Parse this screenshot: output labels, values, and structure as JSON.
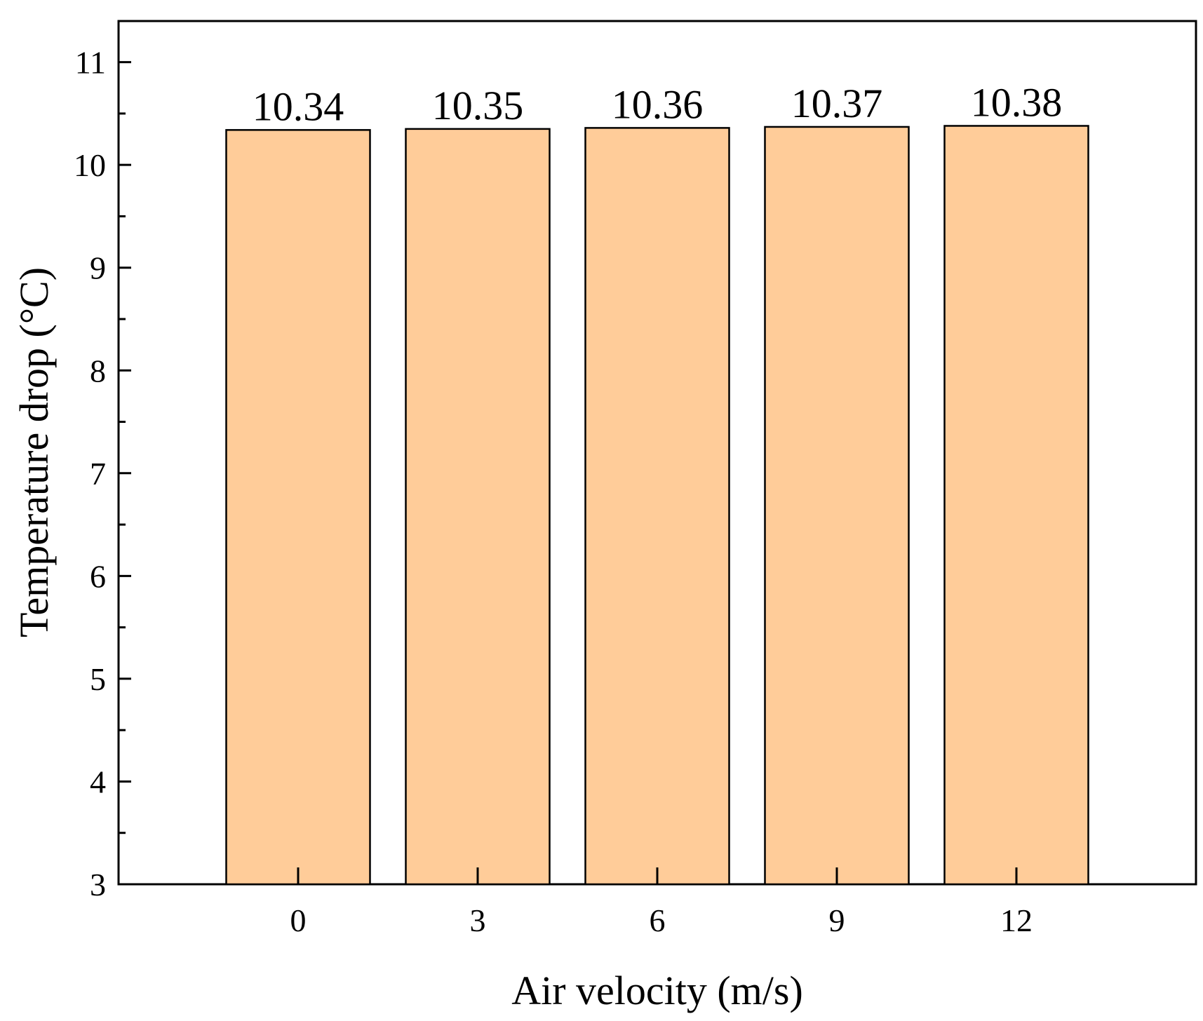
{
  "chart_data": {
    "type": "bar",
    "title": "",
    "xlabel": "Air velocity (m/s)",
    "ylabel": "Temperature drop (°C)",
    "categories": [
      "0",
      "3",
      "6",
      "9",
      "12"
    ],
    "values": [
      10.34,
      10.35,
      10.36,
      10.37,
      10.38
    ],
    "data_labels": [
      "10.34",
      "10.35",
      "10.36",
      "10.37",
      "10.38"
    ],
    "ylim": [
      3,
      11.4
    ],
    "yticks": [
      3,
      4,
      5,
      6,
      7,
      8,
      9,
      10,
      11
    ],
    "ytick_labels": [
      "3",
      "4",
      "5",
      "6",
      "7",
      "8",
      "9",
      "10",
      "11"
    ],
    "bar_color": "#FFCC99",
    "bar_edge_color": "#000000",
    "grid": false,
    "legend": "none"
  }
}
